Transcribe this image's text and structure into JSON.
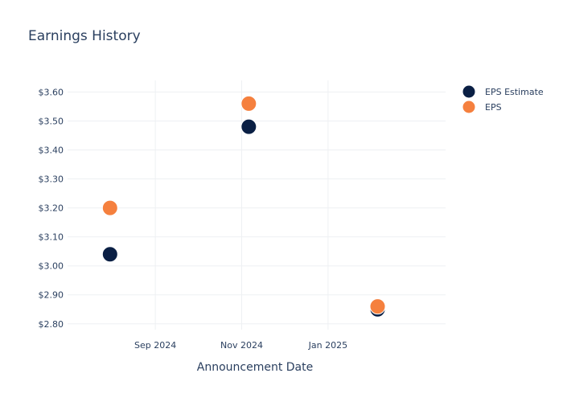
{
  "chart_data": {
    "type": "scatter",
    "title": "Earnings History",
    "xlabel": "Announcement Date",
    "ylabel": "",
    "x_ticks": [
      "Sep 2024",
      "Nov 2024",
      "Jan 2025"
    ],
    "x_tick_dates": [
      "2024-09-01",
      "2024-11-01",
      "2025-01-01"
    ],
    "xlim": [
      "2024-07-01",
      "2025-03-25"
    ],
    "y_ticks": [
      "$2.80",
      "$2.90",
      "$3.00",
      "$3.10",
      "$3.20",
      "$3.30",
      "$3.40",
      "$3.50",
      "$3.60"
    ],
    "y_tick_values": [
      2.8,
      2.9,
      3.0,
      3.1,
      3.2,
      3.3,
      3.4,
      3.5,
      3.6
    ],
    "ylim": [
      2.78,
      3.64
    ],
    "grid": true,
    "legend_position": "top-right",
    "x": [
      "2024-07-31",
      "2024-11-06",
      "2025-02-05"
    ],
    "series": [
      {
        "name": "EPS Estimate",
        "color": "#0a1f44",
        "values": [
          3.04,
          3.48,
          2.85
        ]
      },
      {
        "name": "EPS",
        "color": "#f5803e",
        "values": [
          3.2,
          3.56,
          2.86
        ]
      }
    ]
  }
}
